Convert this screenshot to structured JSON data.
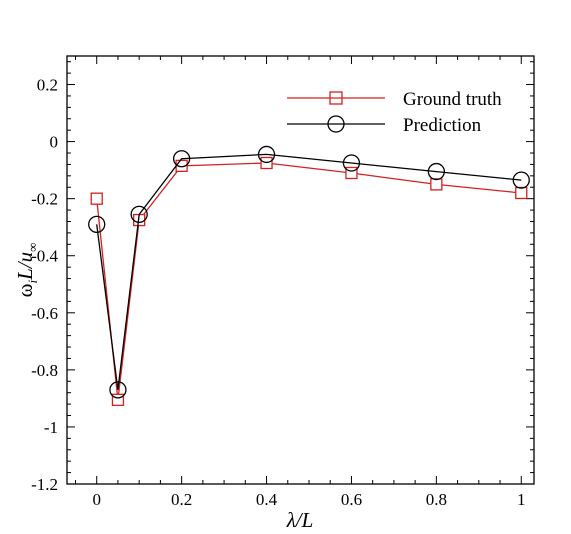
{
  "chart_data": {
    "type": "line",
    "title": "",
    "xlabel": "λ/L",
    "ylabel_parts": {
      "omega": "ω",
      "sub_i": "i",
      "L": "L/",
      "u": "u",
      "sub_inf": "∞"
    },
    "xlim": [
      -0.07,
      1.03
    ],
    "ylim": [
      -1.2,
      0.3
    ],
    "x_ticks": [
      0,
      0.2,
      0.4,
      0.6,
      0.8,
      1
    ],
    "x_tick_labels": [
      "0",
      "0.2",
      "0.4",
      "0.6",
      "0.8",
      "1"
    ],
    "y_ticks": [
      0.2,
      0,
      -0.2,
      -0.4,
      -0.6,
      -0.8,
      -1,
      -1.2
    ],
    "y_tick_labels": [
      "0.2",
      "0",
      "-0.2",
      "-0.4",
      "-0.6",
      "-0.8",
      "-1",
      "-1.2"
    ],
    "grid": false,
    "legend_position": "top-right",
    "series": [
      {
        "name": "Ground truth",
        "color": "#d42020",
        "marker": "square",
        "x": [
          0,
          0.05,
          0.1,
          0.2,
          0.4,
          0.6,
          0.8,
          1
        ],
        "y": [
          -0.2,
          -0.905,
          -0.275,
          -0.085,
          -0.075,
          -0.11,
          -0.15,
          -0.18
        ]
      },
      {
        "name": "Prediction",
        "color": "#000000",
        "marker": "circle",
        "x": [
          0,
          0.05,
          0.1,
          0.2,
          0.4,
          0.6,
          0.8,
          1
        ],
        "y": [
          -0.29,
          -0.87,
          -0.255,
          -0.06,
          -0.045,
          -0.075,
          -0.105,
          -0.135
        ]
      }
    ]
  }
}
